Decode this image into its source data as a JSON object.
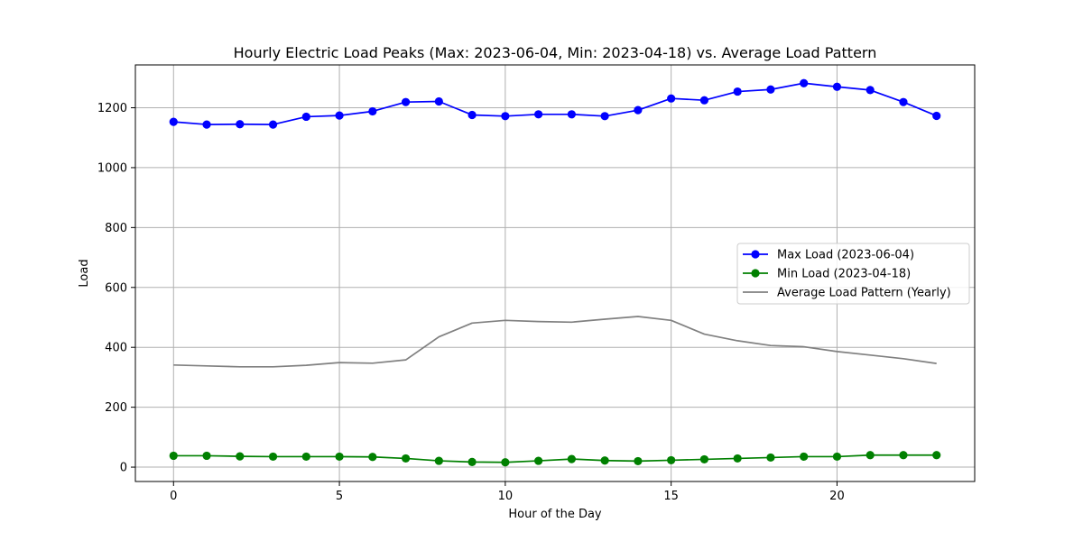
{
  "chart_data": {
    "type": "line",
    "title": "Hourly Electric Load Peaks (Max: 2023-06-04, Min: 2023-04-18) vs. Average Load Pattern",
    "xlabel": "Hour of the Day",
    "ylabel": "Load",
    "x": [
      0,
      1,
      2,
      3,
      4,
      5,
      6,
      7,
      8,
      9,
      10,
      11,
      12,
      13,
      14,
      15,
      16,
      17,
      18,
      19,
      20,
      21,
      22,
      23
    ],
    "xlim": [
      -1.15,
      24.15
    ],
    "ylim": [
      -48,
      1343
    ],
    "xticks": [
      0,
      5,
      10,
      15,
      20
    ],
    "yticks": [
      0,
      200,
      400,
      600,
      800,
      1000,
      1200
    ],
    "grid": true,
    "legend_position": "center-right",
    "series": [
      {
        "name": "Max Load (2023-06-04)",
        "color": "#0000ff",
        "marker": true,
        "values": [
          1153,
          1144,
          1145,
          1144,
          1170,
          1174,
          1188,
          1219,
          1221,
          1176,
          1172,
          1178,
          1178,
          1172,
          1192,
          1231,
          1225,
          1254,
          1261,
          1282,
          1270,
          1259,
          1219,
          1173
        ]
      },
      {
        "name": "Min Load (2023-04-18)",
        "color": "#008000",
        "marker": true,
        "values": [
          38,
          38,
          36,
          35,
          35,
          35,
          34,
          29,
          21,
          17,
          16,
          21,
          27,
          22,
          20,
          23,
          26,
          29,
          32,
          35,
          35,
          40,
          40,
          40
        ]
      },
      {
        "name": "Average Load Pattern (Yearly)",
        "color": "#808080",
        "marker": false,
        "values": [
          341,
          338,
          335,
          335,
          340,
          349,
          347,
          358,
          435,
          481,
          490,
          486,
          484,
          494,
          503,
          490,
          444,
          422,
          406,
          402,
          386,
          374,
          362,
          346
        ]
      }
    ]
  }
}
